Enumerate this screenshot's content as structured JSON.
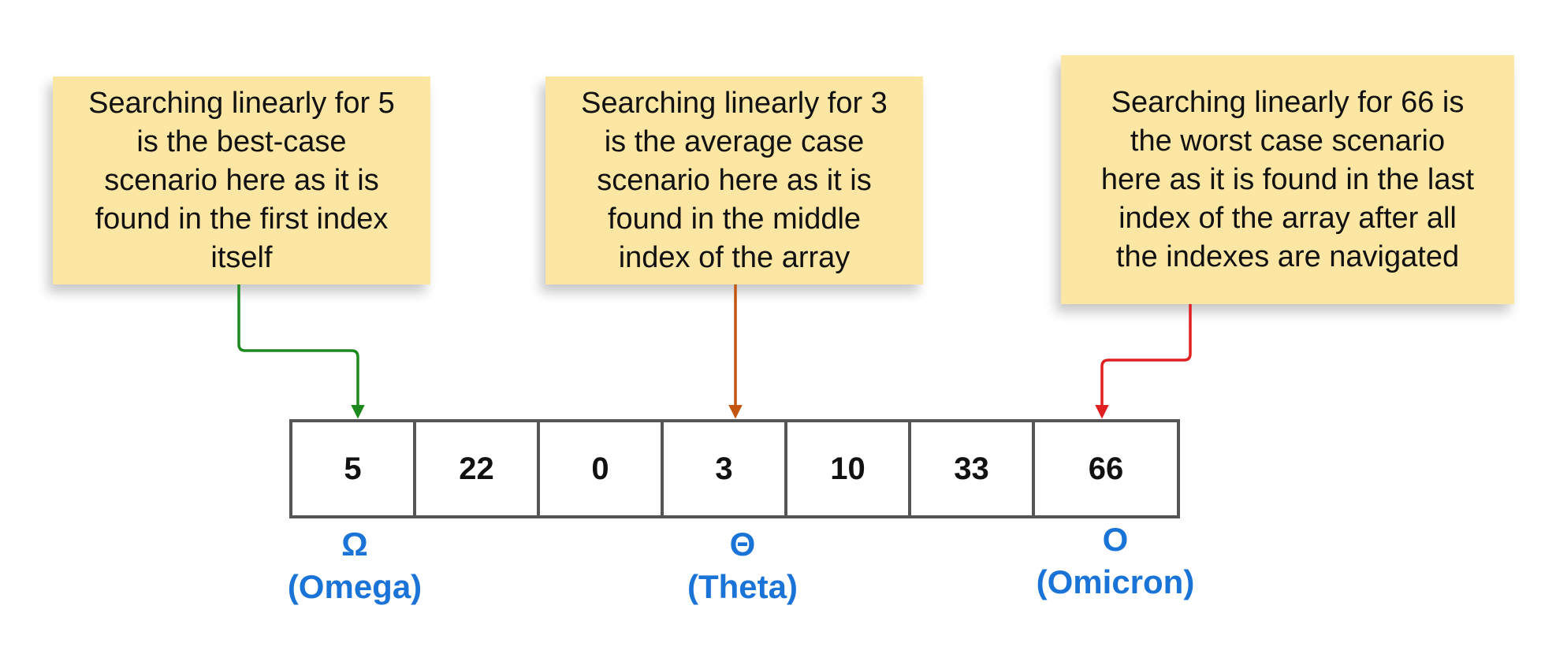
{
  "notes": [
    {
      "id": "best",
      "lines": [
        "Searching linearly for 5",
        "is the best-case",
        "scenario here as it is",
        "found in the first index",
        "itself"
      ]
    },
    {
      "id": "average",
      "lines": [
        "Searching linearly for 3",
        "is the average case",
        "scenario here as it is",
        "found in the middle",
        "index of the array"
      ]
    },
    {
      "id": "worst",
      "lines": [
        "Searching linearly for 66 is",
        "the worst case scenario",
        "here as it is found in the last",
        "index of the array after all",
        "the indexes are navigated"
      ]
    }
  ],
  "array": {
    "values": [
      "5",
      "22",
      "0",
      "3",
      "10",
      "33",
      "66"
    ]
  },
  "notations": [
    {
      "symbol": "Ω",
      "name": "(Omega)"
    },
    {
      "symbol": "Θ",
      "name": "(Theta)"
    },
    {
      "symbol": "O",
      "name": "(Omicron)"
    }
  ],
  "colors": {
    "note_bg": "#fbe6a4",
    "best_arrow": "#1e8a1e",
    "average_arrow": "#c4550f",
    "worst_arrow": "#e02020",
    "notation_text": "#1a73d6",
    "array_border": "#555555"
  }
}
